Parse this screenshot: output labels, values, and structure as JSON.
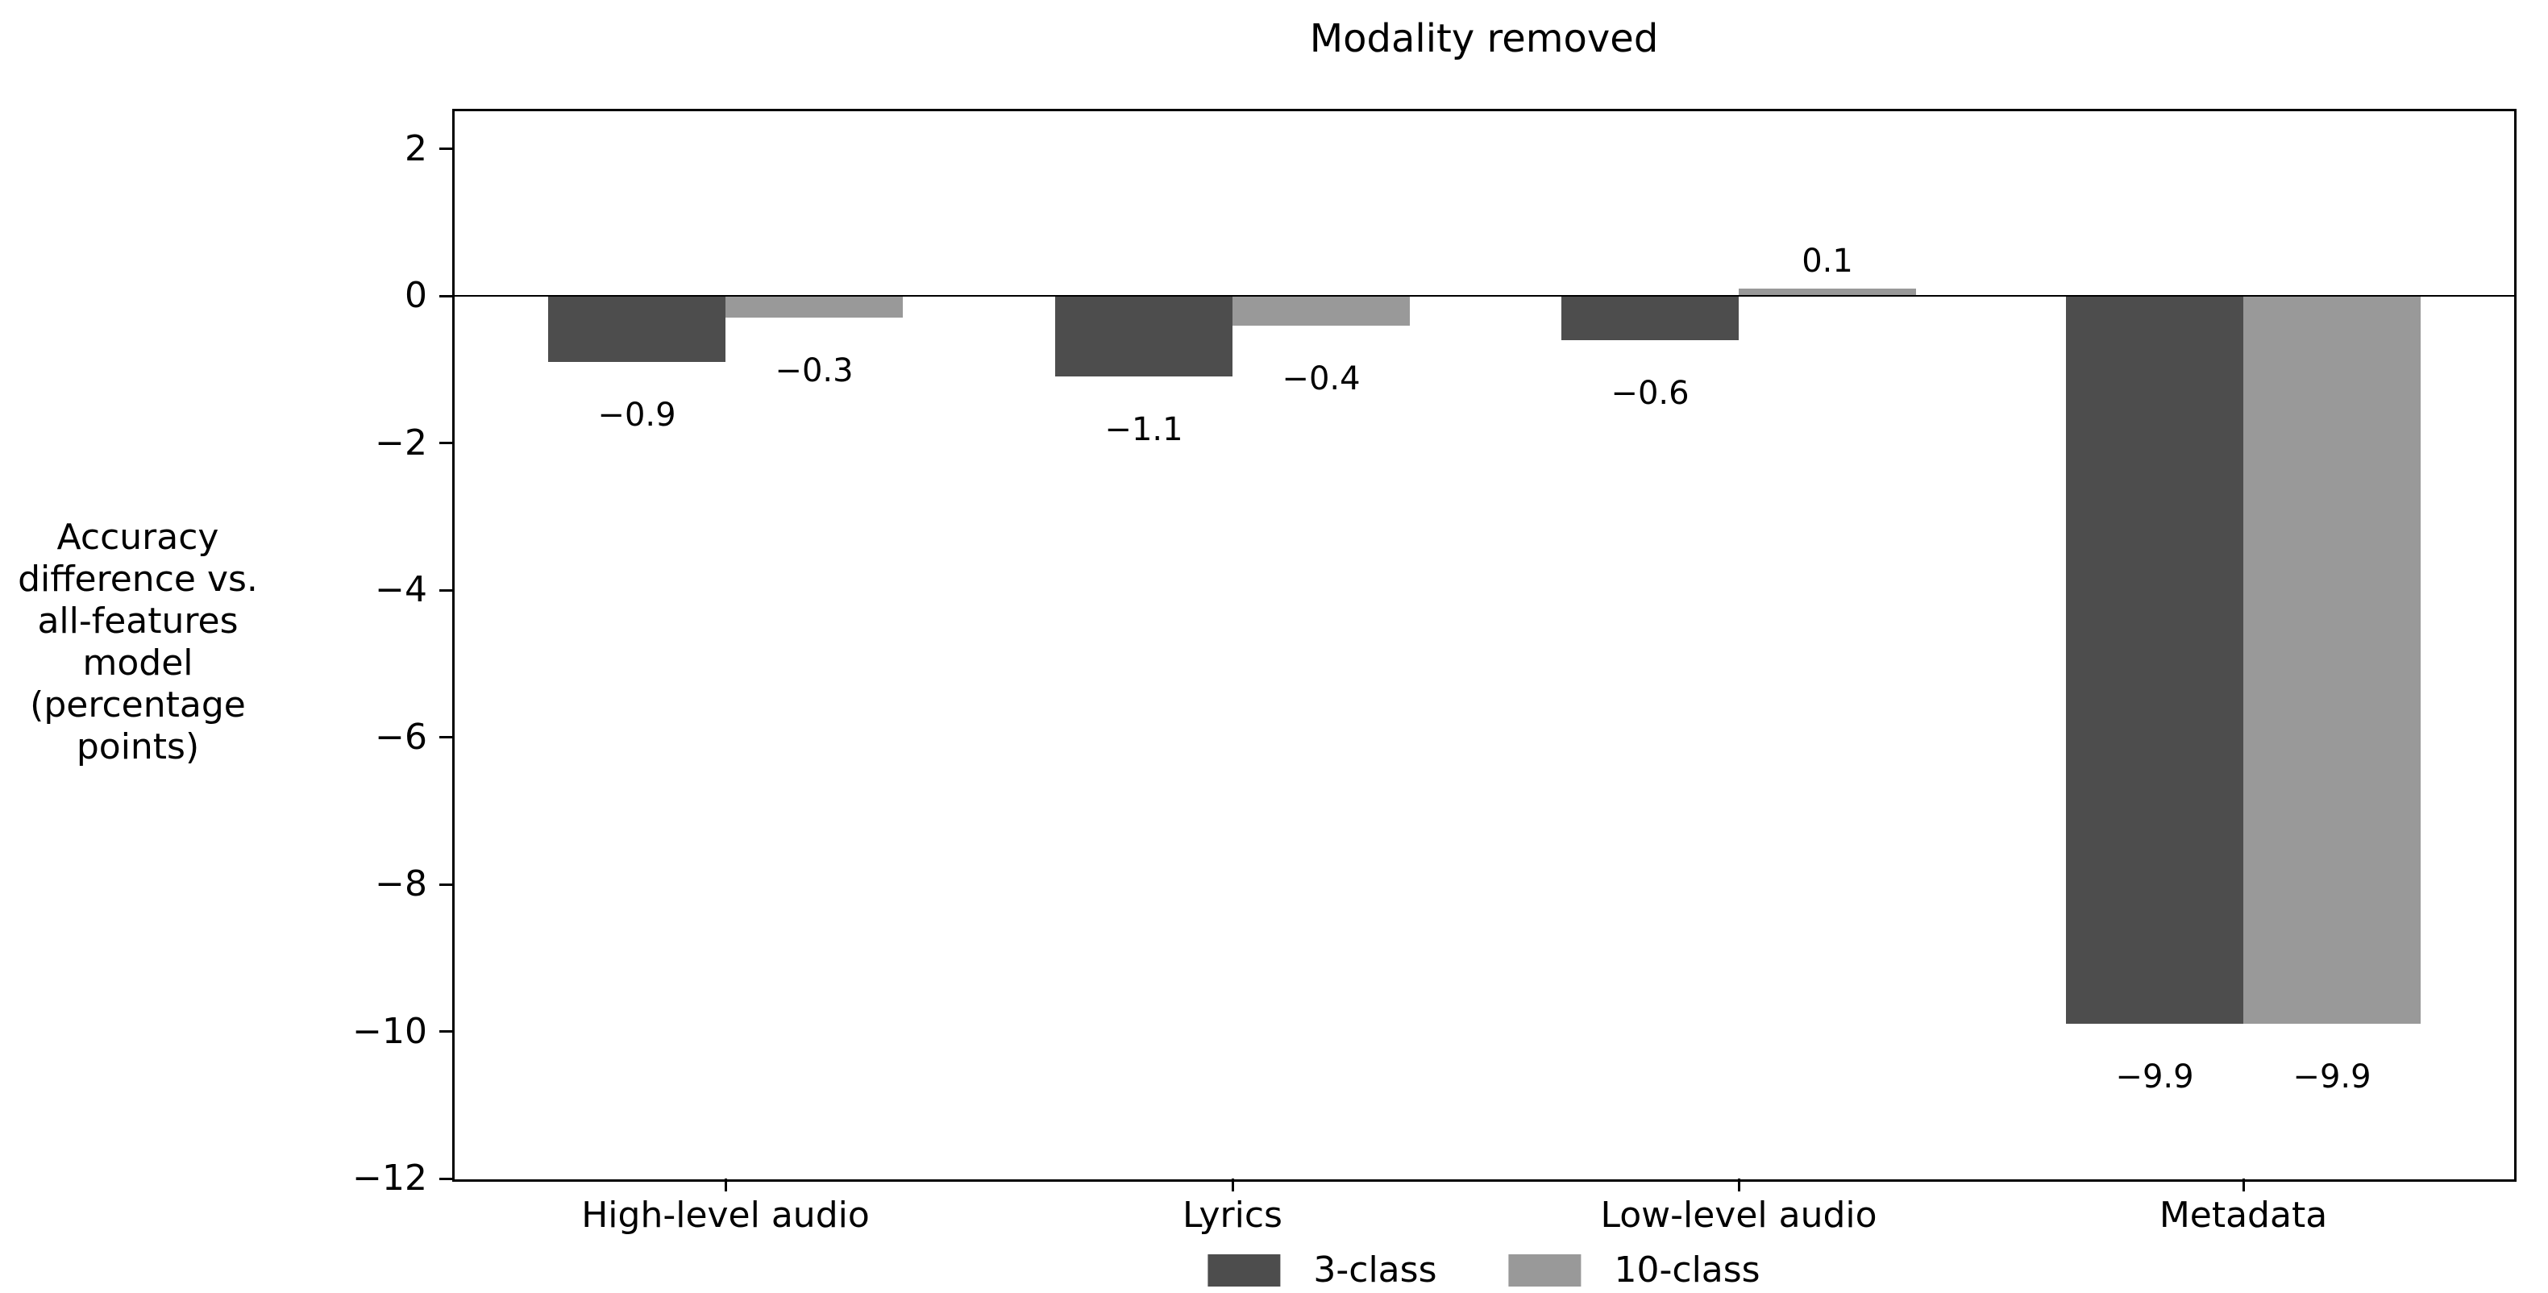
{
  "figure": {
    "title": "Modality removed"
  },
  "y_axis": {
    "label_lines": [
      "Accuracy",
      "difference vs.",
      "all-features",
      "model",
      "(percentage",
      "points)"
    ],
    "tick_labels": [
      "2",
      "0",
      "−2",
      "−4",
      "−6",
      "−8",
      "−10",
      "−12"
    ]
  },
  "x_axis": {
    "tick_labels": [
      "High-level audio",
      "Lyrics",
      "Low-level audio",
      "Metadata"
    ]
  },
  "legend": {
    "items": [
      {
        "label": "3-class",
        "color": "#4d4d4d"
      },
      {
        "label": "10-class",
        "color": "#999999"
      }
    ]
  },
  "colors": {
    "bar_dark": "#4d4d4d",
    "bar_light": "#999999",
    "axis": "#000000",
    "text": "#000000",
    "background": "#ffffff"
  },
  "chart_data": {
    "type": "bar",
    "title": "Modality removed",
    "categories": [
      "High-level audio",
      "Lyrics",
      "Low-level audio",
      "Metadata"
    ],
    "series": [
      {
        "name": "3-class",
        "color": "#4d4d4d",
        "values": [
          -0.9,
          -1.1,
          -0.6,
          -9.9
        ],
        "labels": [
          "−0.9",
          "−1.1",
          "−0.6",
          "−9.9"
        ]
      },
      {
        "name": "10-class",
        "color": "#999999",
        "values": [
          -0.3,
          -0.4,
          0.1,
          -9.9
        ],
        "labels": [
          "−0.3",
          "−0.4",
          "0.1",
          "−9.9"
        ]
      }
    ],
    "xlabel": "",
    "ylabel": "Accuracy difference vs. all-features model (percentage points)",
    "yticks": [
      2,
      0,
      -2,
      -4,
      -6,
      -8,
      -10,
      -12
    ],
    "ylim": [
      -12,
      2.5
    ],
    "bar_value_labels": true,
    "zero_line": true,
    "grid": false,
    "legend_position": "lower center, below x-axis labels"
  }
}
